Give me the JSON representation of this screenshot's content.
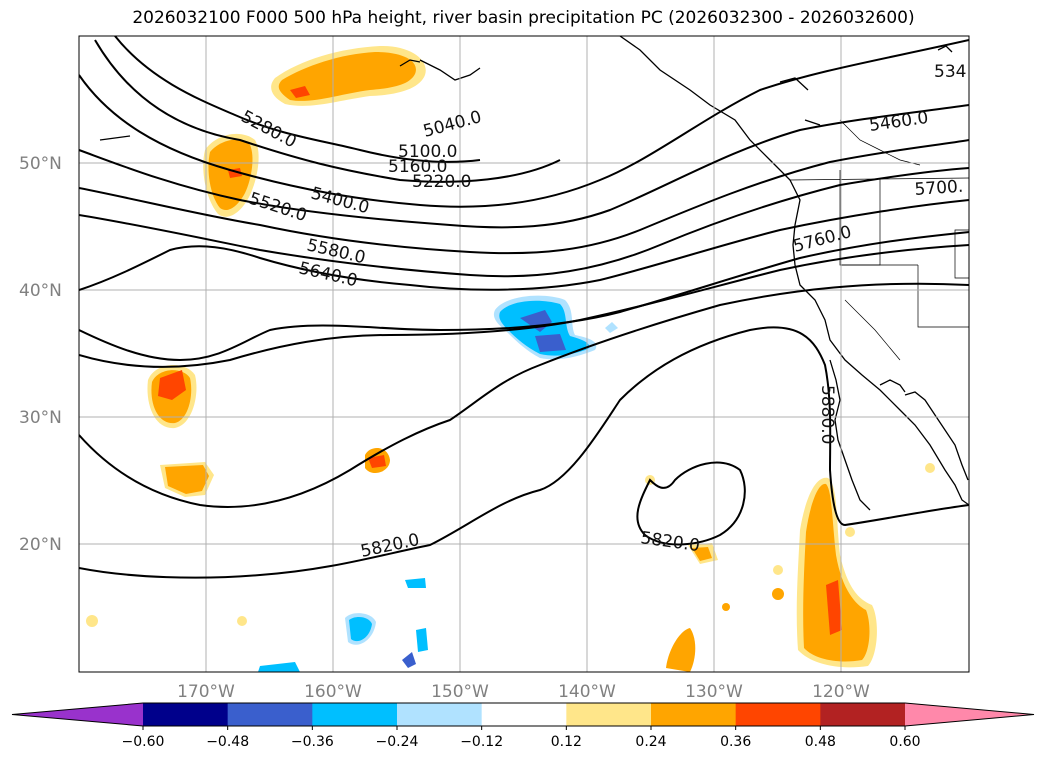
{
  "title": "2026032100 F000 500 hPa height, river basin precipitation PC (2026032300 - 2026032600)",
  "lat_labels": [
    "50°N",
    "40°N",
    "30°N",
    "20°N"
  ],
  "lon_labels": [
    "170°W",
    "160°W",
    "150°W",
    "140°W",
    "130°W",
    "120°W"
  ],
  "contour_labels": [
    "5280.0",
    "5040.0",
    "5100.0",
    "5160.0",
    "5220.0",
    "5400.0",
    "5520.0",
    "5580.0",
    "5640.0",
    "534",
    "5460.0",
    "5700.",
    "5760.0",
    "5880.0",
    "5820.0",
    "5820.0"
  ],
  "colorbar": {
    "ticks": [
      "−0.60",
      "−0.48",
      "−0.36",
      "−0.24",
      "−0.12",
      "0.12",
      "0.24",
      "0.36",
      "0.48",
      "0.60"
    ],
    "colors": [
      "#9932cc",
      "#00008b",
      "#3a5fcd",
      "#00bfff",
      "#b0e2ff",
      "#ffffff",
      "#ffe68a",
      "#ffa500",
      "#ff4500",
      "#b22222",
      "#ff88aa"
    ]
  },
  "colors": {
    "land_outline": "#000000",
    "grid": "#b0b0b0",
    "height_contour": "#000000"
  }
}
